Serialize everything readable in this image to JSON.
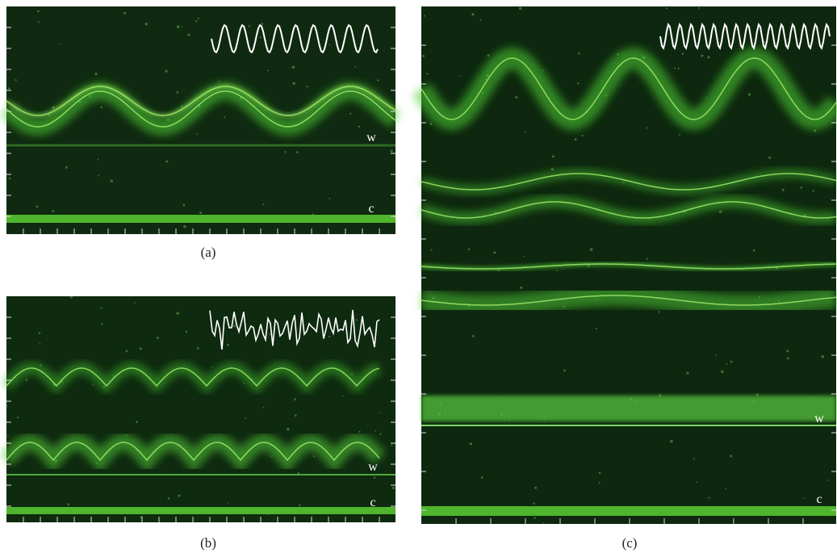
{
  "panels": [
    {
      "caption": "(a)",
      "labels": [
        "w",
        "c"
      ]
    },
    {
      "caption": "(b)",
      "labels": [
        "w",
        "c"
      ]
    },
    {
      "caption": "(c)",
      "labels": [
        "w",
        "c"
      ]
    }
  ]
}
